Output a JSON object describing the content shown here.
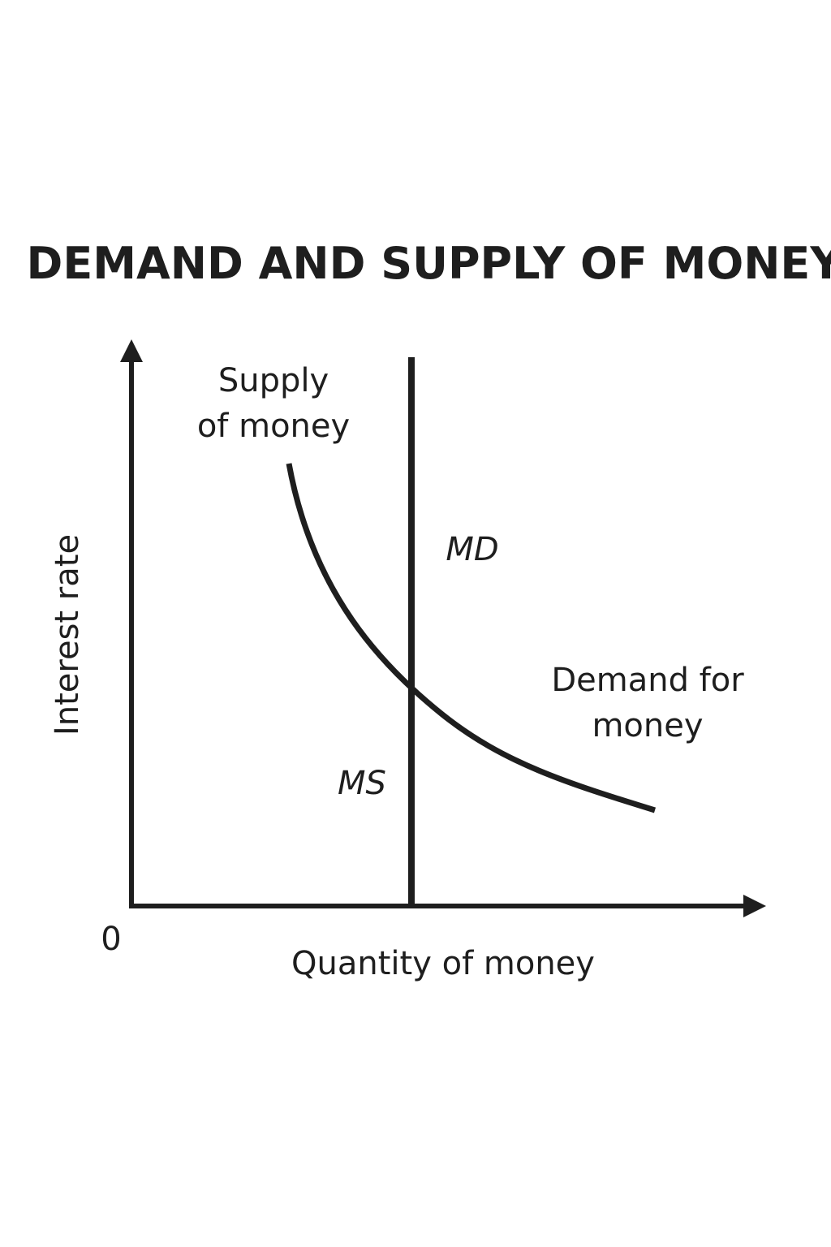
{
  "title": "DEMAND AND SUPPLY OF MONEY",
  "axes": {
    "y_label": "Interest rate",
    "x_label": "Quantity of money",
    "origin_label": "0"
  },
  "labels": {
    "supply_line1": "Supply",
    "supply_line2": "of money",
    "demand_line1": "Demand for",
    "demand_line2": "money",
    "md": "MD",
    "ms": "MS"
  },
  "colors": {
    "ink": "#1e1e1e",
    "background": "#ffffff"
  }
}
